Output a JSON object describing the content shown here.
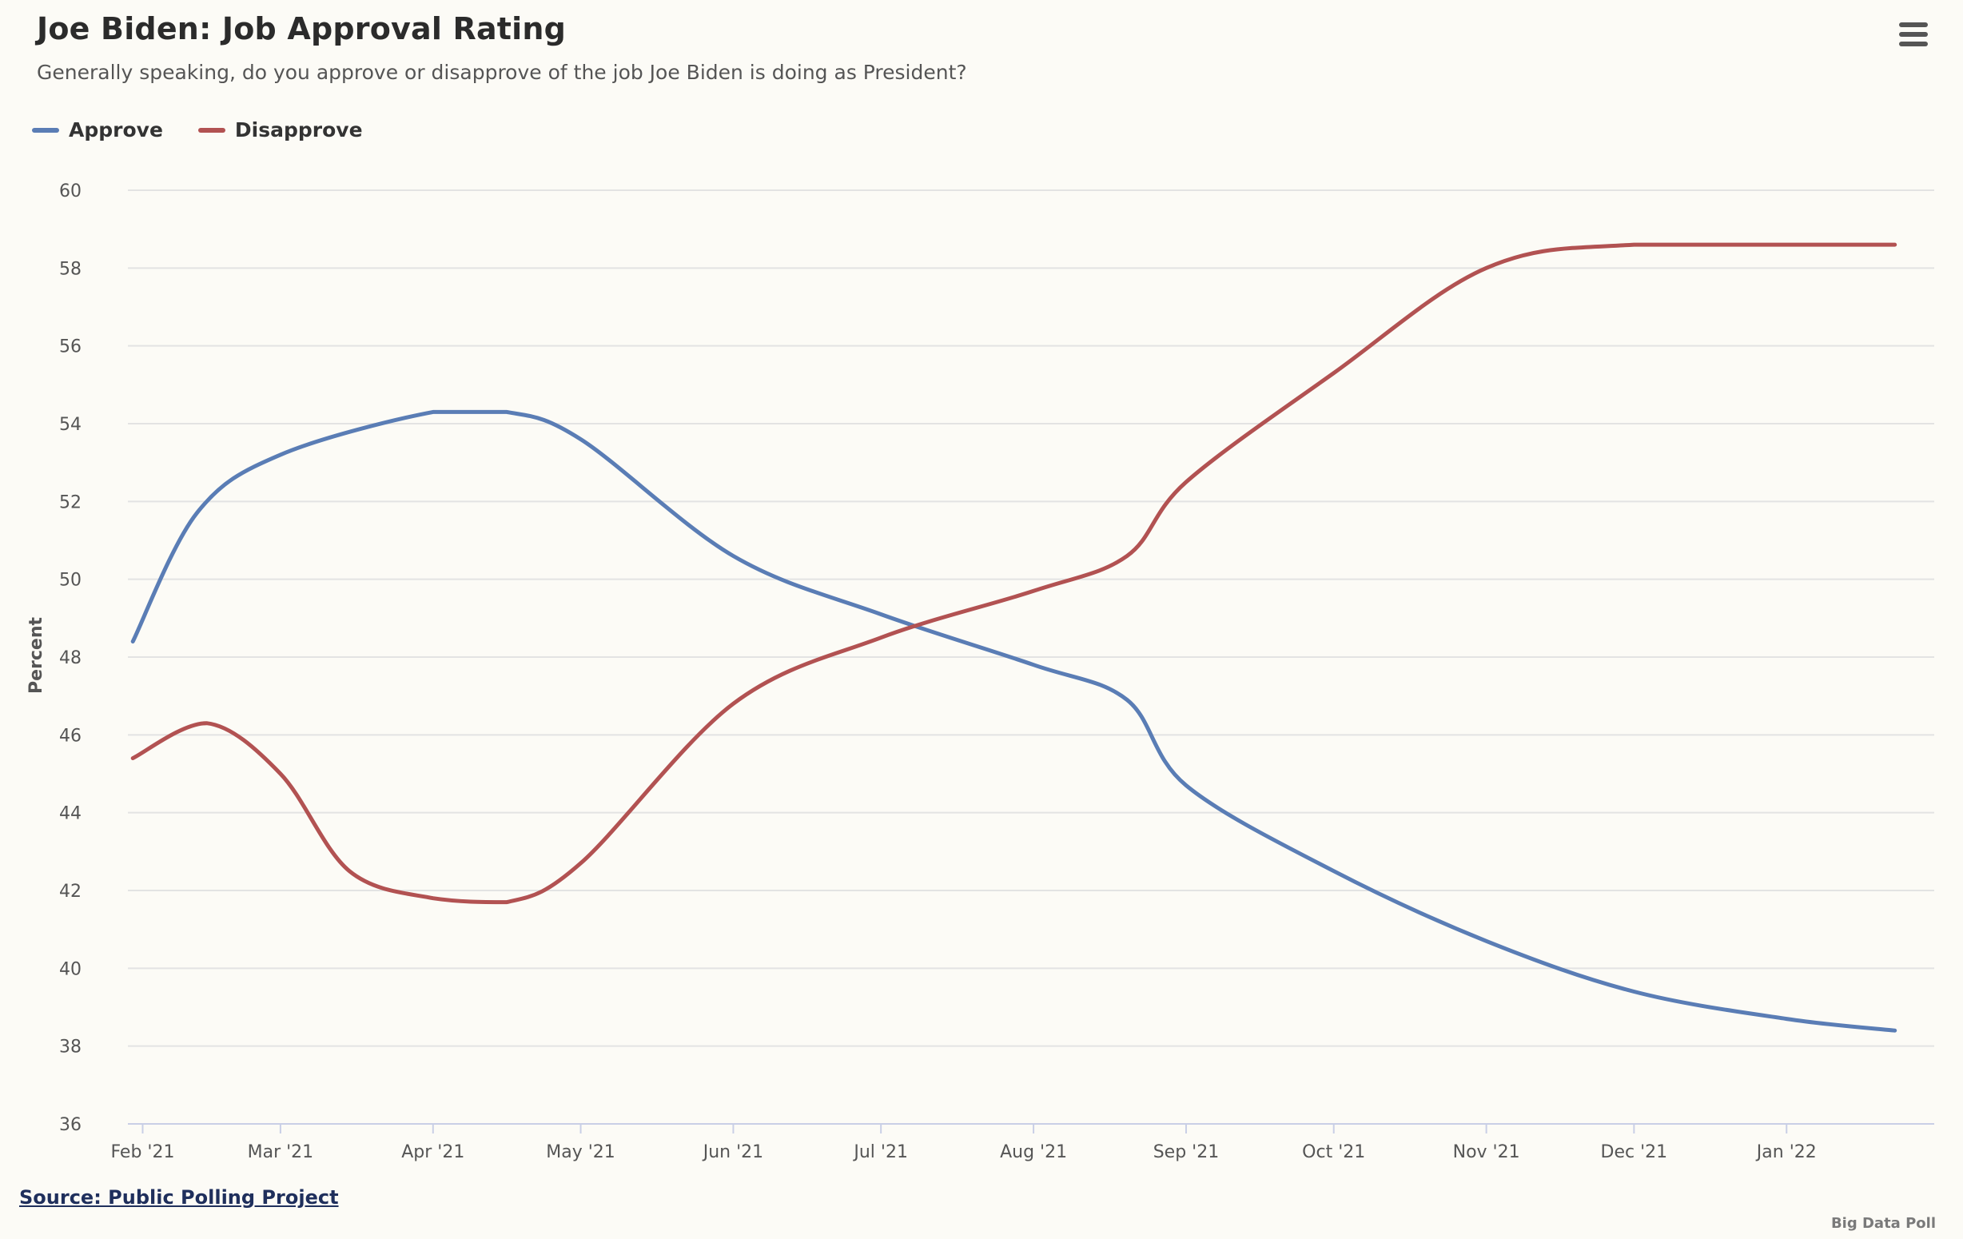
{
  "menu": {
    "icon": "hamburger-menu-icon"
  },
  "source": {
    "label": "Source: Public Polling Project"
  },
  "credits": {
    "label": "Big Data Poll"
  },
  "colors": {
    "approve": "#5a7db5",
    "disapprove": "#b25252",
    "grid": "#e3e3e3",
    "axis": "#c9cfe6"
  },
  "chart_data": {
    "type": "line",
    "title": "Joe Biden: Job Approval Rating",
    "subtitle": "Generally speaking, do you approve or disapprove of the job Joe Biden is doing as President?",
    "xlabel": "",
    "ylabel": "Percent",
    "ylim": [
      36,
      60
    ],
    "yticks": [
      36,
      38,
      40,
      42,
      44,
      46,
      48,
      50,
      52,
      54,
      56,
      58,
      60
    ],
    "xlim": [
      "2021-01-29",
      "2022-01-31"
    ],
    "xticks": [
      {
        "date": "2021-02-01",
        "label": "Feb '21"
      },
      {
        "date": "2021-03-01",
        "label": "Mar '21"
      },
      {
        "date": "2021-04-01",
        "label": "Apr '21"
      },
      {
        "date": "2021-05-01",
        "label": "May '21"
      },
      {
        "date": "2021-06-01",
        "label": "Jun '21"
      },
      {
        "date": "2021-07-01",
        "label": "Jul '21"
      },
      {
        "date": "2021-08-01",
        "label": "Aug '21"
      },
      {
        "date": "2021-09-01",
        "label": "Sep '21"
      },
      {
        "date": "2021-10-01",
        "label": "Oct '21"
      },
      {
        "date": "2021-11-01",
        "label": "Nov '21"
      },
      {
        "date": "2021-12-01",
        "label": "Dec '21"
      },
      {
        "date": "2022-01-01",
        "label": "Jan '22"
      }
    ],
    "grid": true,
    "legend_position": "top-left",
    "series": [
      {
        "name": "Approve",
        "color": "#5a7db5",
        "points": [
          {
            "x": "2021-01-30",
            "y": 48.4
          },
          {
            "x": "2021-02-12",
            "y": 51.7
          },
          {
            "x": "2021-03-01",
            "y": 53.2
          },
          {
            "x": "2021-04-01",
            "y": 54.3
          },
          {
            "x": "2021-04-16",
            "y": 54.3
          },
          {
            "x": "2021-05-01",
            "y": 53.6
          },
          {
            "x": "2021-06-01",
            "y": 50.6
          },
          {
            "x": "2021-07-01",
            "y": 49.1
          },
          {
            "x": "2021-08-01",
            "y": 47.8
          },
          {
            "x": "2021-08-20",
            "y": 46.9
          },
          {
            "x": "2021-09-01",
            "y": 44.7
          },
          {
            "x": "2021-10-01",
            "y": 42.5
          },
          {
            "x": "2021-11-01",
            "y": 40.7
          },
          {
            "x": "2021-12-01",
            "y": 39.4
          },
          {
            "x": "2022-01-01",
            "y": 38.7
          },
          {
            "x": "2022-01-23",
            "y": 38.4
          }
        ]
      },
      {
        "name": "Disapprove",
        "color": "#b25252",
        "points": [
          {
            "x": "2021-01-30",
            "y": 45.4
          },
          {
            "x": "2021-02-14",
            "y": 46.3
          },
          {
            "x": "2021-03-01",
            "y": 45.0
          },
          {
            "x": "2021-03-15",
            "y": 42.5
          },
          {
            "x": "2021-04-01",
            "y": 41.8
          },
          {
            "x": "2021-04-16",
            "y": 41.7
          },
          {
            "x": "2021-05-01",
            "y": 42.7
          },
          {
            "x": "2021-06-01",
            "y": 46.8
          },
          {
            "x": "2021-07-01",
            "y": 48.5
          },
          {
            "x": "2021-08-01",
            "y": 49.7
          },
          {
            "x": "2021-08-20",
            "y": 50.6
          },
          {
            "x": "2021-09-01",
            "y": 52.5
          },
          {
            "x": "2021-10-01",
            "y": 55.3
          },
          {
            "x": "2021-11-01",
            "y": 58.0
          },
          {
            "x": "2021-12-01",
            "y": 58.6
          },
          {
            "x": "2022-01-23",
            "y": 58.6
          }
        ]
      }
    ]
  }
}
